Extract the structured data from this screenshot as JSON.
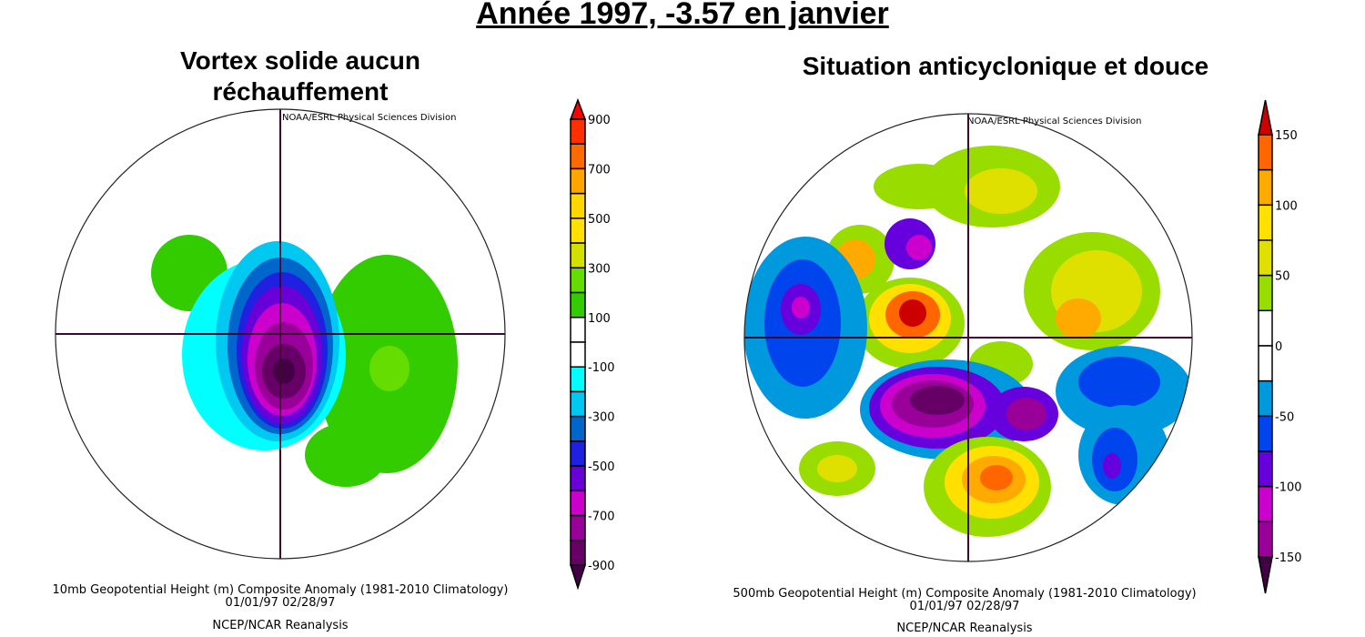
{
  "title": "Année 1997, -3.57 en janvier",
  "left_panel": {
    "heading": "Vortex solide aucun réchauffement",
    "credit": "NOAA/ESRL Physical Sciences Division",
    "caption_line1": "10mb Geopotential Height (m) Composite Anomaly (1981-2010 Climatology)",
    "caption_line2": "01/01/97 02/28/97",
    "caption_line3": "NCEP/NCAR Reanalysis",
    "colorbar": {
      "max": 900,
      "min": -900,
      "step": 100,
      "tick_labels": [
        "900",
        "700",
        "500",
        "300",
        "100",
        "-100",
        "-300",
        "-500",
        "-700",
        "-900"
      ],
      "colors": [
        "#ff3000",
        "#ff6a00",
        "#ffa500",
        "#ffd700",
        "#ffe000",
        "#d4e000",
        "#66dd00",
        "#33cc00",
        "#ffffff",
        "#ffffff",
        "#00ffff",
        "#00c8f0",
        "#0066cc",
        "#2020e0",
        "#6a00d8",
        "#cc00cc",
        "#990099",
        "#660066"
      ],
      "arrow_top": "#ff0000",
      "arrow_bottom": "#440044"
    }
  },
  "right_panel": {
    "heading": "Situation anticyclonique et douce",
    "credit": "NOAA/ESRL Physical Sciences Division",
    "caption_line1": "500mb Geopotential Height (m) Composite Anomaly (1981-2010 Climatology)",
    "caption_line2": "01/01/97 02/28/97",
    "caption_line3": "NCEP/NCAR Reanalysis",
    "colorbar": {
      "max": 150,
      "min": -150,
      "step": 25,
      "tick_labels": [
        "150",
        "100",
        "50",
        "0",
        "-50",
        "-100",
        "-150"
      ],
      "colors": [
        "#ff6600",
        "#ffaa00",
        "#ffe000",
        "#e0e000",
        "#99dd00",
        "#ffffff",
        "#ffffff",
        "#0099dd",
        "#0044ee",
        "#6600dd",
        "#cc00cc",
        "#990099"
      ],
      "arrow_top": "#cc0000",
      "arrow_bottom": "#440044"
    }
  }
}
